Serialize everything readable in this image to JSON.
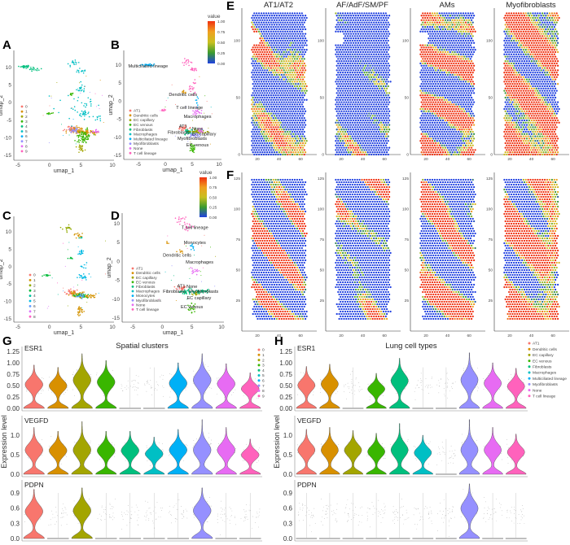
{
  "panel_labels": {
    "A": "A",
    "B": "B",
    "C": "C",
    "D": "D",
    "E": "E",
    "F": "F",
    "G": "G",
    "H": "H"
  },
  "colorbar": {
    "title": "value",
    "ticks": [
      "1.00",
      "0.75",
      "0.50",
      "0.25",
      "0.00"
    ],
    "colors": [
      "#F03010",
      "#F0A020",
      "#C8C020",
      "#3A9A30",
      "#2040E0"
    ]
  },
  "chart_data": [
    {
      "id": "A",
      "type": "scatter",
      "xlabel": "umap_1",
      "ylabel": "umap_2",
      "xticks": [
        -5,
        0,
        5,
        10
      ],
      "yticks": [
        10,
        5,
        0,
        -5,
        -10,
        -15
      ],
      "legend": {
        "entries": [
          "0",
          "1",
          "2",
          "3",
          "4",
          "5",
          "6",
          "7",
          "8",
          "9"
        ],
        "placement": "left"
      },
      "colors": [
        "#F8766D",
        "#D89000",
        "#A3A500",
        "#39B600",
        "#00BF7D",
        "#00BFC4",
        "#00B0F6",
        "#9590FF",
        "#E76BF3",
        "#FF62BC"
      ],
      "groups": [
        [
          -4,
          10.2,
          0.6,
          0.2,
          25,
          4
        ],
        [
          -2.5,
          9.5,
          0.6,
          0.3,
          20,
          4
        ],
        [
          3.8,
          11,
          0.4,
          0.5,
          15,
          5
        ],
        [
          4.8,
          9,
          0.4,
          0.4,
          15,
          5
        ],
        [
          5,
          4,
          0.3,
          0.8,
          20,
          5
        ],
        [
          3.5,
          2.5,
          0.2,
          0.2,
          8,
          3
        ],
        [
          5.5,
          -3,
          0.5,
          0.5,
          25,
          5
        ],
        [
          6,
          0,
          0.5,
          1,
          10,
          5
        ],
        [
          0,
          -3,
          0.3,
          0.2,
          12,
          3
        ],
        [
          7.8,
          -4.5,
          0.3,
          0.3,
          8,
          5
        ],
        [
          3.5,
          -7.5,
          0.5,
          0.4,
          40,
          0
        ],
        [
          4.5,
          -8,
          0.8,
          0.5,
          60,
          1
        ],
        [
          5.5,
          -9,
          0.6,
          0.6,
          50,
          3
        ],
        [
          6.5,
          -8.5,
          0.6,
          0.3,
          30,
          1
        ],
        [
          5.5,
          -10.5,
          0.5,
          0.5,
          30,
          3
        ],
        [
          5,
          -13,
          0.3,
          0.6,
          25,
          2
        ],
        [
          7,
          -8.2,
          0.4,
          0.3,
          15,
          8
        ],
        [
          4,
          -8,
          0.5,
          0.4,
          20,
          7
        ],
        [
          4,
          -1,
          2,
          3,
          20,
          5
        ]
      ]
    },
    {
      "id": "B",
      "type": "scatter",
      "xlabel": "umap_1",
      "ylabel": "umap_2",
      "xticks": [
        -5,
        0,
        5,
        10
      ],
      "yticks": [
        10,
        5,
        0,
        -5,
        -10,
        -15
      ],
      "legend": {
        "entries": [
          "AT1",
          "Dendritic cells",
          "EC capillary",
          "EC venous",
          "Fibroblasts",
          "Macrophages",
          "Multiciliated lineage",
          "Myofibroblasts",
          "None",
          "T cell lineage"
        ],
        "placement": "left"
      },
      "colors": [
        "#F8766D",
        "#D89000",
        "#A3A500",
        "#39B600",
        "#00BF7D",
        "#00BFC4",
        "#00B0F6",
        "#9590FF",
        "#E76BF3",
        "#FF62BC"
      ],
      "annotations": [
        {
          "text": "Multiciliated lineage",
          "x": -3.2,
          "y": 9.3
        },
        {
          "text": "Dendritic cells",
          "x": 3.3,
          "y": 1.4
        },
        {
          "text": "T cell lineage",
          "x": 4.5,
          "y": -2.2
        },
        {
          "text": "Macrophages",
          "x": 6,
          "y": -4.6
        },
        {
          "text": "AT1",
          "x": 3.3,
          "y": -7.3
        },
        {
          "text": "None",
          "x": 6,
          "y": -8
        },
        {
          "text": "Fibroblasts",
          "x": 2.5,
          "y": -9
        },
        {
          "text": "EC capillary",
          "x": 7.2,
          "y": -9.5
        },
        {
          "text": "Myofibroblasts",
          "x": 5,
          "y": -10.7
        },
        {
          "text": "EC venous",
          "x": 6,
          "y": -12.5
        }
      ],
      "groups": [
        [
          -3.2,
          10,
          0.6,
          0.2,
          30,
          6
        ],
        [
          4,
          10.5,
          0.4,
          0.5,
          15,
          9
        ],
        [
          5,
          8.8,
          0.4,
          0.3,
          15,
          9
        ],
        [
          5,
          4,
          0.3,
          0.9,
          18,
          9
        ],
        [
          3.5,
          2.5,
          0.2,
          0.2,
          8,
          1
        ],
        [
          5.8,
          -3,
          0.4,
          0.5,
          20,
          8
        ],
        [
          6,
          0,
          0.3,
          0.8,
          8,
          6
        ],
        [
          -0.5,
          -2.5,
          0.3,
          0.2,
          10,
          9
        ],
        [
          3.5,
          -7.5,
          0.4,
          0.3,
          30,
          0
        ],
        [
          4.5,
          -8.5,
          0.6,
          0.4,
          40,
          4
        ],
        [
          6.2,
          -8.5,
          0.8,
          0.3,
          40,
          2
        ],
        [
          5.5,
          -9.5,
          0.4,
          0.4,
          25,
          7
        ],
        [
          6.5,
          -8,
          0.3,
          0.3,
          15,
          8
        ],
        [
          5,
          -13,
          0.3,
          0.6,
          25,
          3
        ]
      ]
    },
    {
      "id": "C",
      "type": "scatter",
      "xlabel": "umap_1",
      "ylabel": "umap_2",
      "xticks": [
        -5,
        0,
        5,
        10
      ],
      "yticks": [
        10,
        5,
        0,
        -5,
        -10,
        -15
      ],
      "legend": {
        "entries": [
          "0",
          "1",
          "2",
          "3",
          "4",
          "5",
          "6",
          "7",
          "8"
        ],
        "placement": "left"
      },
      "colors": [
        "#F8766D",
        "#D39200",
        "#93AA00",
        "#00BA38",
        "#00C19F",
        "#00B9E3",
        "#619CFF",
        "#DB72FB",
        "#FF61C3"
      ],
      "groups": [
        [
          3,
          11,
          0.4,
          0.5,
          15,
          2
        ],
        [
          4.5,
          9,
          0.5,
          0.4,
          15,
          1
        ],
        [
          5,
          8.3,
          0.2,
          0.2,
          5,
          4
        ],
        [
          5,
          4,
          0.3,
          0.6,
          15,
          5
        ],
        [
          3.5,
          2.5,
          0.2,
          0.2,
          8,
          3
        ],
        [
          5.5,
          -3,
          0.4,
          0.4,
          18,
          5
        ],
        [
          5.5,
          0,
          0.4,
          0.8,
          8,
          5
        ],
        [
          -0.5,
          -2.5,
          0.3,
          0.2,
          10,
          3
        ],
        [
          3.5,
          -7.5,
          0.5,
          0.4,
          30,
          0
        ],
        [
          4.5,
          -8,
          0.8,
          0.5,
          50,
          1
        ],
        [
          5,
          -8.5,
          0.6,
          0.4,
          40,
          3
        ],
        [
          6.5,
          -8.5,
          0.6,
          0.3,
          25,
          1
        ],
        [
          5,
          -8.5,
          0.4,
          0.3,
          15,
          6
        ],
        [
          5,
          -13,
          0.3,
          0.7,
          25,
          1
        ]
      ]
    },
    {
      "id": "D",
      "type": "scatter",
      "xlabel": "umap_1",
      "ylabel": "umap_2",
      "xticks": [
        -5,
        0,
        5,
        10
      ],
      "yticks": [
        10,
        5,
        0,
        -5,
        -10,
        -15
      ],
      "legend": {
        "entries": [
          "AT1",
          "Dendritic cells",
          "EC capillary",
          "EC venous",
          "Fibroblasts",
          "Macrophages",
          "Monocytes",
          "Myofibroblasts",
          "None",
          "T cell lineage"
        ],
        "placement": "left"
      },
      "colors": [
        "#F8766D",
        "#D89000",
        "#A3A500",
        "#39B600",
        "#00BF7D",
        "#00BFC4",
        "#00B0F6",
        "#9590FF",
        "#E76BF3",
        "#FF62BC"
      ],
      "annotations": [
        {
          "text": "T cell lineage",
          "x": 5.5,
          "y": 8.6
        },
        {
          "text": "Monocytes",
          "x": 5.5,
          "y": 4.6
        },
        {
          "text": "Dendritic cells",
          "x": 2.5,
          "y": 1.3
        },
        {
          "text": "Macrophages",
          "x": 6.3,
          "y": -0.6
        },
        {
          "text": "AT1",
          "x": 3.2,
          "y": -6.9
        },
        {
          "text": "None",
          "x": 5,
          "y": -7
        },
        {
          "text": "Fibroblasts",
          "x": 2,
          "y": -8.3
        },
        {
          "text": "Myofibroblasts",
          "x": 7,
          "y": -8.3
        },
        {
          "text": "EC capillary",
          "x": 6.2,
          "y": -10
        },
        {
          "text": "EC venous",
          "x": 5,
          "y": -12.4
        }
      ],
      "groups": [
        [
          3,
          11,
          0.4,
          0.5,
          15,
          9
        ],
        [
          4.5,
          9,
          0.5,
          0.4,
          15,
          9
        ],
        [
          5,
          4,
          0.3,
          0.4,
          12,
          6
        ],
        [
          1,
          5,
          0.2,
          0.2,
          4,
          1
        ],
        [
          3.2,
          2.6,
          0.3,
          0.2,
          8,
          1
        ],
        [
          5.5,
          -2.5,
          0.4,
          0.6,
          15,
          8
        ],
        [
          3.5,
          -7,
          0.4,
          0.3,
          25,
          0
        ],
        [
          4.3,
          -8,
          0.6,
          0.4,
          35,
          4
        ],
        [
          6.5,
          -8,
          0.7,
          0.3,
          35,
          4
        ],
        [
          5.5,
          -8.5,
          0.4,
          0.3,
          15,
          2
        ],
        [
          5,
          -12.5,
          0.3,
          0.7,
          20,
          3
        ]
      ]
    },
    {
      "id": "E",
      "type": "heatmap",
      "titles": [
        "AT1/AT2",
        "AF/AdF/SM/PF",
        "AMs",
        "Myofibroblasts"
      ],
      "xticks": [
        20,
        40,
        60
      ],
      "yticks": [
        0,
        50,
        100
      ],
      "value_range": [
        0,
        1
      ],
      "colorbar_title": "value"
    },
    {
      "id": "F",
      "type": "heatmap",
      "xticks": [
        20,
        40,
        60
      ],
      "yticks": [
        25,
        50,
        75,
        100,
        125
      ],
      "value_range": [
        0,
        1
      ]
    },
    {
      "id": "G",
      "type": "violin",
      "title": "Spatial clusters",
      "ylabel": "Expression level",
      "categories": [
        "0",
        "1",
        "2",
        "3",
        "4",
        "5",
        "6",
        "7",
        "8",
        "9"
      ],
      "colors": [
        "#F8766D",
        "#D89000",
        "#A3A500",
        "#39B600",
        "#00BF7D",
        "#00BFC4",
        "#00B0F6",
        "#9590FF",
        "#E76BF3",
        "#FF62BC"
      ],
      "genes": [
        {
          "name": "ESR1",
          "yticks": [
            "0.00",
            "0.25",
            "0.50",
            "0.75",
            "1.00",
            "1.25"
          ],
          "max": [
            0.95,
            0.9,
            1.2,
            1.05,
            0,
            0,
            1.0,
            1.2,
            0.98,
            0.78
          ]
        },
        {
          "name": "VEGFD",
          "yticks": [
            "0.0",
            "0.5",
            "1.0"
          ],
          "max": [
            1.2,
            1.1,
            1.35,
            1.1,
            1.1,
            0.95,
            1.15,
            1.4,
            1.2,
            0.9
          ]
        },
        {
          "name": "PDPN",
          "yticks": [
            "0.0",
            "0.3",
            "0.6",
            "0.9"
          ],
          "max": [
            0.97,
            0,
            1.0,
            0,
            0,
            0,
            0,
            1.0,
            0,
            0
          ]
        }
      ]
    },
    {
      "id": "H",
      "type": "violin",
      "title": "Lung cell types",
      "ylabel": "Expression level",
      "categories": [
        "AT1",
        "Dendritic cells",
        "EC capillary",
        "EC venous",
        "Fibroblasts",
        "Macrophages",
        "Multiciliated lineage",
        "Myofibroblasts",
        "None",
        "T cell lineage"
      ],
      "colors": [
        "#F8766D",
        "#D89000",
        "#A3A500",
        "#39B600",
        "#00BF7D",
        "#00BFC4",
        "#00B0F6",
        "#9590FF",
        "#E76BF3",
        "#FF62BC"
      ],
      "genes": [
        {
          "name": "ESR1",
          "yticks": [
            "0.00",
            "0.25",
            "0.50",
            "0.75",
            "1.00",
            "1.25"
          ],
          "max": [
            0.92,
            0.97,
            0,
            0.77,
            1.1,
            0,
            0,
            1.22,
            1.0,
            0.88
          ]
        },
        {
          "name": "VEGFD",
          "yticks": [
            "0.0",
            "0.5",
            "1.0"
          ],
          "max": [
            1.15,
            1.2,
            1.12,
            1.05,
            1.3,
            1.0,
            0,
            1.4,
            1.2,
            1.03
          ]
        },
        {
          "name": "PDPN",
          "yticks": [
            "0.0",
            "0.3",
            "0.6",
            "0.9"
          ],
          "max": [
            0,
            0,
            0,
            0,
            0,
            0,
            0,
            1.08,
            0,
            0
          ]
        }
      ]
    }
  ]
}
